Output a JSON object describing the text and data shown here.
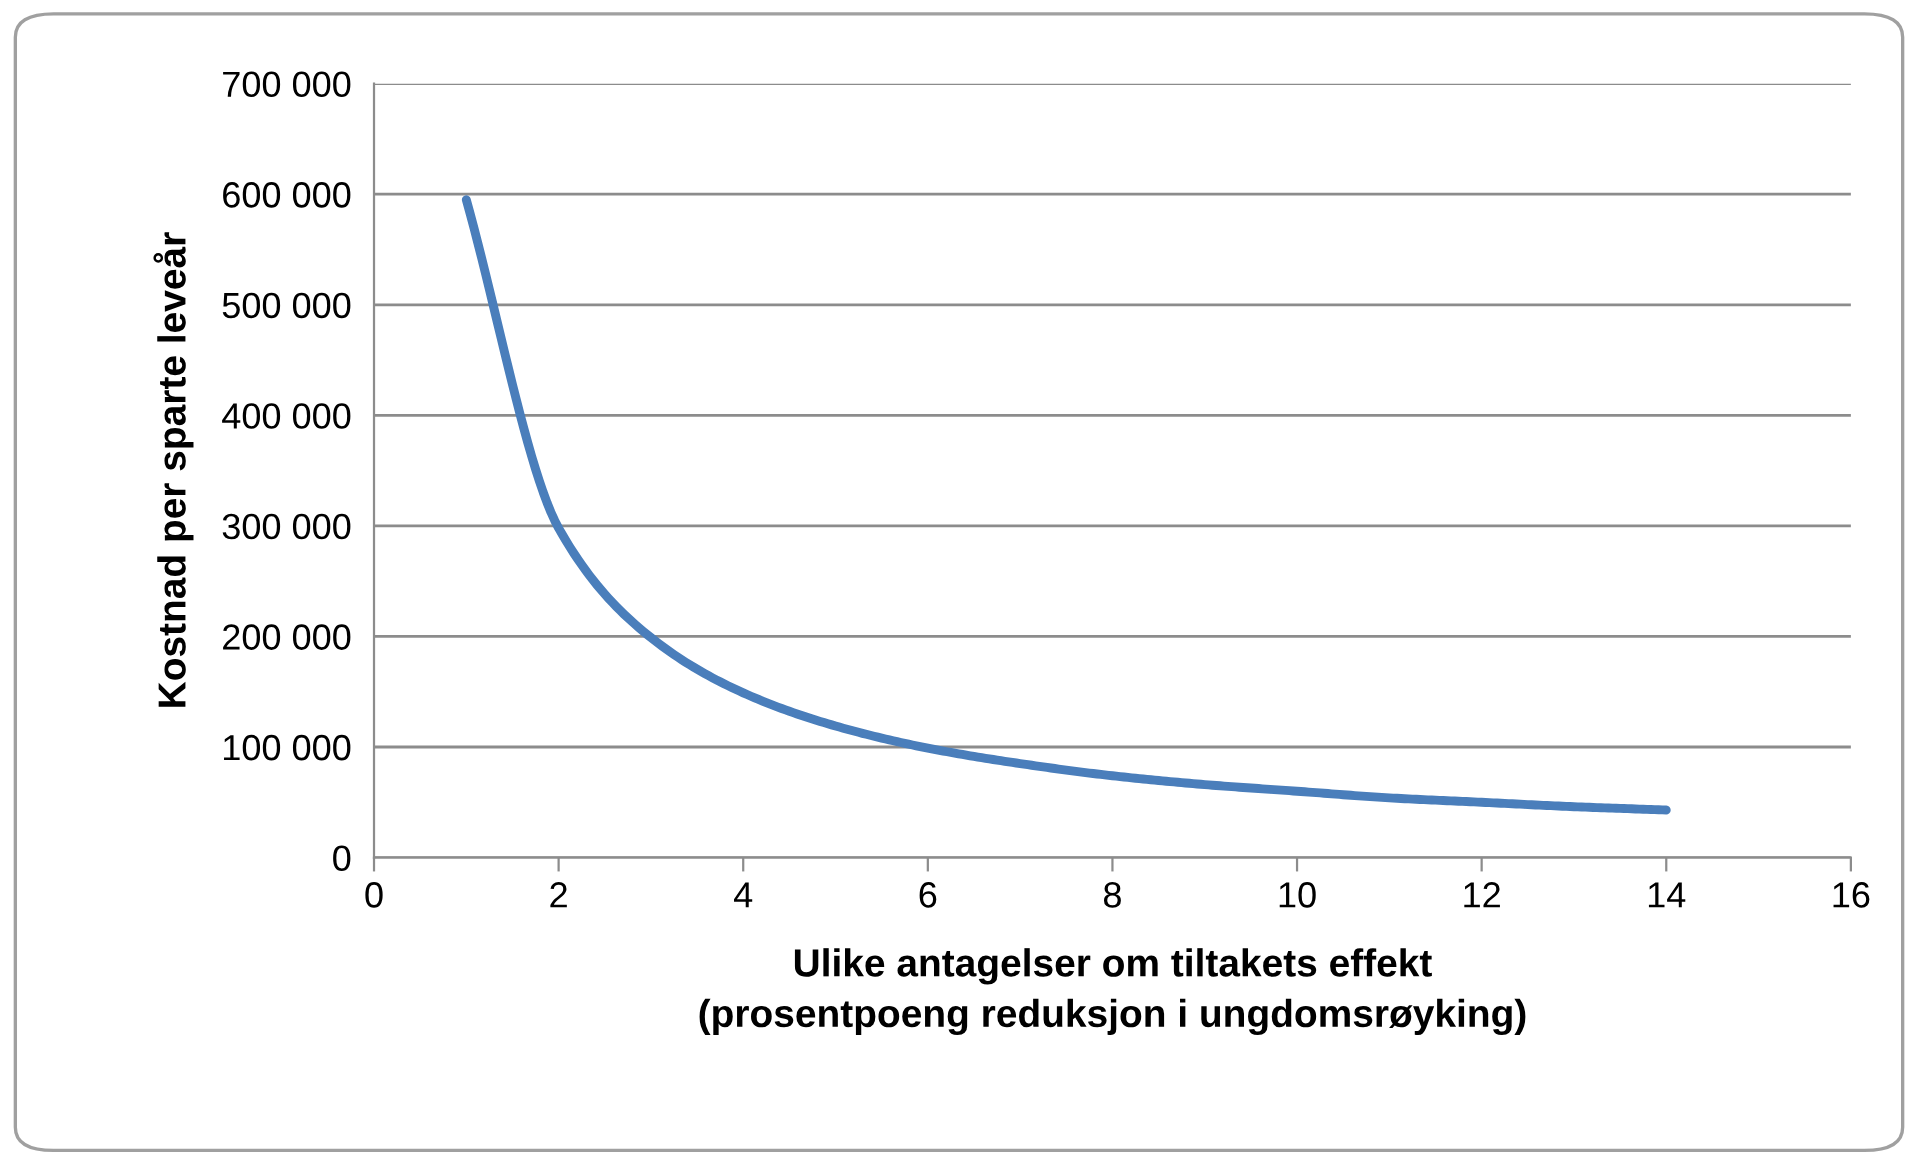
{
  "chart_data": {
    "type": "line",
    "xlabel": "Ulike antagelser om tiltakets effekt\n(prosentpoeng reduksjon i ungdomsrøyking)",
    "ylabel": "Kostnad per sparte leveår",
    "series": [
      {
        "color": "#4a7ebb",
        "x": [
          1,
          2,
          3,
          4,
          5,
          6,
          7,
          8,
          9,
          10,
          11,
          12,
          13,
          14
        ],
        "values": [
          595000,
          298000,
          199000,
          149000,
          119000,
          99000,
          85000,
          74000,
          66000,
          60000,
          54000,
          50000,
          46000,
          43000
        ]
      }
    ],
    "xlim": [
      0,
      16
    ],
    "xticks": [
      0,
      2,
      4,
      6,
      8,
      10,
      12,
      14,
      16
    ],
    "ylim": [
      0,
      700000
    ],
    "yticks": [
      {
        "value": 0,
        "label": "0"
      },
      {
        "value": 100000,
        "label": "100 000"
      },
      {
        "value": 200000,
        "label": "200 000"
      },
      {
        "value": 300000,
        "label": "300 000"
      },
      {
        "value": 400000,
        "label": "400 000"
      },
      {
        "value": 500000,
        "label": "500 000"
      },
      {
        "value": 600000,
        "label": "600 000"
      },
      {
        "value": 700000,
        "label": "700 000"
      }
    ],
    "grid": "y",
    "marker": "none",
    "line_style": "solid"
  }
}
